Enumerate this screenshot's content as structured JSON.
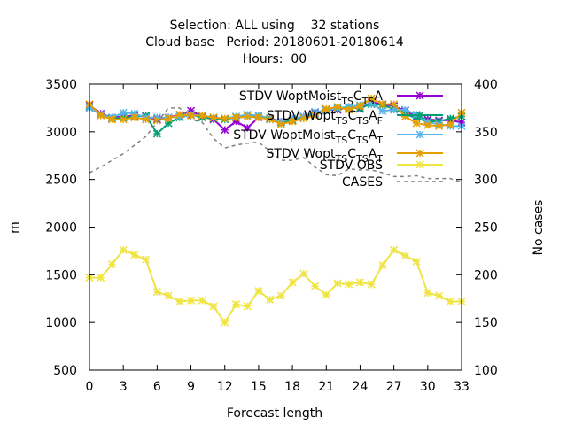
{
  "chart_data": {
    "type": "line",
    "title_lines": [
      "Selection: ALL using    32 stations",
      "Cloud base   Period: 20180601-20180614",
      "Hours:  00"
    ],
    "xlabel": "Forecast length",
    "ylabel": "m",
    "y2label": "No cases",
    "xlim": [
      0,
      33
    ],
    "ylim": [
      500,
      3500
    ],
    "y2lim": [
      100,
      400
    ],
    "xticks": [
      0,
      3,
      6,
      9,
      12,
      15,
      18,
      21,
      24,
      27,
      30,
      33
    ],
    "yticks": [
      500,
      1000,
      1500,
      2000,
      2500,
      3000,
      3500
    ],
    "y2ticks": [
      100,
      150,
      200,
      250,
      300,
      350,
      400
    ],
    "grid": false,
    "legend_position": "top-right",
    "x": [
      0,
      1,
      2,
      3,
      4,
      5,
      6,
      7,
      8,
      9,
      10,
      11,
      12,
      13,
      14,
      15,
      16,
      17,
      18,
      19,
      20,
      21,
      22,
      23,
      24,
      25,
      26,
      27,
      28,
      29,
      30,
      31,
      32,
      33
    ],
    "series": [
      {
        "legend_label": {
          "base": "STDV WoptMoist",
          "sub1": "T",
          "sub2": "S",
          "c": "C",
          "sub3": "T",
          "sub4": "S",
          "a": "A",
          "sub5": ""
        },
        "color": "#9400d3",
        "marker": "x",
        "axis": "y",
        "values": [
          3280,
          3190,
          3150,
          3160,
          3170,
          3160,
          3130,
          3150,
          3180,
          3220,
          3160,
          3130,
          3020,
          3110,
          3040,
          3150,
          3140,
          3110,
          3120,
          3160,
          3200,
          3230,
          3230,
          3260,
          3240,
          3310,
          3290,
          3270,
          3220,
          3160,
          3130,
          3120,
          3120,
          3100
        ]
      },
      {
        "legend_label": {
          "base": "STDV Wopt",
          "sub1": "T",
          "sub2": "S",
          "c": "C",
          "sub3": "T",
          "sub4": "S",
          "a": "A",
          "sub5": "F"
        },
        "color": "#009e73",
        "marker": "x",
        "axis": "y",
        "values": [
          3260,
          3180,
          3140,
          3150,
          3160,
          3170,
          2980,
          3090,
          3150,
          3180,
          3150,
          3140,
          3130,
          3150,
          3160,
          3170,
          3140,
          3100,
          3120,
          3150,
          3180,
          3230,
          3240,
          3250,
          3250,
          3290,
          3280,
          3240,
          3190,
          3140,
          3110,
          3110,
          3140,
          3160
        ]
      },
      {
        "legend_label": {
          "base": "STDV WoptMoist",
          "sub1": "T",
          "sub2": "S",
          "c": "C",
          "sub3": "T",
          "sub4": "S",
          "a": "A",
          "sub5": "T"
        },
        "color": "#56b4e9",
        "marker": "x",
        "axis": "y",
        "values": [
          3250,
          3180,
          3150,
          3200,
          3190,
          3150,
          3150,
          3150,
          3160,
          3180,
          3170,
          3150,
          3140,
          3160,
          3180,
          3170,
          3130,
          3110,
          3140,
          3160,
          3210,
          3220,
          3250,
          3260,
          3280,
          3300,
          3220,
          3230,
          3230,
          3180,
          3100,
          3080,
          3060,
          3060
        ]
      },
      {
        "legend_label": {
          "base": "STDV Wopt",
          "sub1": "T",
          "sub2": "S",
          "c": "C",
          "sub3": "T",
          "sub4": "S",
          "a": "A",
          "sub5": "T"
        },
        "color": "#e69f00",
        "marker": "x",
        "axis": "y",
        "values": [
          3290,
          3170,
          3130,
          3130,
          3150,
          3130,
          3120,
          3140,
          3180,
          3170,
          3170,
          3150,
          3140,
          3150,
          3160,
          3150,
          3130,
          3080,
          3110,
          3140,
          3170,
          3240,
          3260,
          3230,
          3270,
          3350,
          3290,
          3290,
          3160,
          3090,
          3070,
          3060,
          3080,
          3200
        ]
      },
      {
        "legend_label": {
          "base": "STDV OBS",
          "sub1": "",
          "sub2": "",
          "c": "",
          "sub3": "",
          "sub4": "",
          "a": "",
          "sub5": ""
        },
        "color": "#f0e442",
        "marker": "x",
        "axis": "y",
        "values": [
          1470,
          1470,
          1610,
          1760,
          1710,
          1660,
          1320,
          1280,
          1220,
          1230,
          1230,
          1170,
          1000,
          1190,
          1170,
          1330,
          1240,
          1280,
          1420,
          1510,
          1380,
          1290,
          1410,
          1400,
          1420,
          1400,
          1600,
          1760,
          1700,
          1640,
          1310,
          1280,
          1220,
          1220
        ]
      },
      {
        "legend_label": {
          "base": "CASES",
          "sub1": "",
          "sub2": "",
          "c": "",
          "sub3": "",
          "sub4": "",
          "a": "",
          "sub5": ""
        },
        "color": "#808080",
        "marker": "none",
        "dashed": true,
        "axis": "y2",
        "values": [
          307,
          313,
          320,
          327,
          336,
          345,
          360,
          375,
          375,
          363,
          360,
          343,
          333,
          336,
          338,
          339,
          330,
          320,
          320,
          323,
          313,
          305,
          304,
          311,
          310,
          310,
          307,
          303,
          303,
          304,
          301,
          301,
          301,
          297
        ]
      }
    ]
  }
}
